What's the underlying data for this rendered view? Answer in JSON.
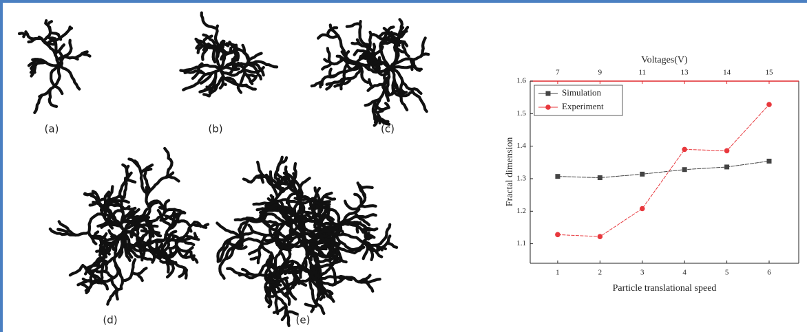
{
  "panel_labels": [
    "(a)",
    "(b)",
    "(c)",
    "(d)",
    "(e)"
  ],
  "chart_data": {
    "type": "line",
    "x_label": "Particle translational speed",
    "y_label": "Fractal dimension",
    "x2_label": "Voltages(V)",
    "x": [
      1,
      2,
      3,
      4,
      5,
      6
    ],
    "xlim": [
      0.35,
      6.7
    ],
    "xticks": [
      1,
      2,
      3,
      4,
      5,
      6
    ],
    "x2ticks": [
      7,
      9,
      11,
      13,
      14,
      15
    ],
    "x2_color": "#e0262b",
    "ylim": [
      1.04,
      1.6
    ],
    "yticks": [
      1.1,
      1.2,
      1.3,
      1.4,
      1.5,
      1.6
    ],
    "legend": "upper-left",
    "series": [
      {
        "name": "Simulation",
        "color": "#444444",
        "marker": "square",
        "values": [
          1.307,
          1.303,
          1.314,
          1.328,
          1.336,
          1.354
        ]
      },
      {
        "name": "Experiment",
        "color": "#e8383d",
        "marker": "circle",
        "values": [
          1.128,
          1.122,
          1.208,
          1.39,
          1.386,
          1.528
        ]
      }
    ]
  }
}
